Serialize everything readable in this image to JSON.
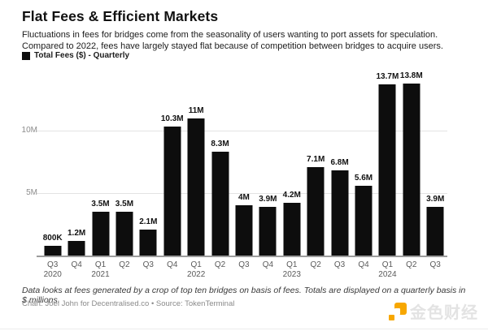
{
  "header": {
    "title": "Flat Fees & Efficient Markets",
    "subtitle": "Fluctuations in fees for bridges come from the seasonality of users wanting to port assets for speculation. Compared to 2022, fees have largely stayed flat because of competition between bridges to acquire users.",
    "legend": {
      "label": "Total Fees ($) - Quarterly",
      "swatch_color": "#0d0d0d"
    }
  },
  "chart_data": {
    "type": "bar",
    "title": "Total Fees ($) - Quarterly",
    "xlabel": "",
    "ylabel": "",
    "unit": "$ millions",
    "ylim": [
      0,
      14.55
    ],
    "grid": true,
    "legend_position": "top-left",
    "bar_color": "#0d0d0d",
    "grid_color": "#e3e3e3",
    "yticks": [
      {
        "label": "5M",
        "value": 5
      },
      {
        "label": "10M",
        "value": 10
      }
    ],
    "categories": [
      "Q3 2020",
      "Q4 2020",
      "Q1 2021",
      "Q2 2021",
      "Q3 2021",
      "Q4 2021",
      "Q1 2022",
      "Q2 2022",
      "Q3 2022",
      "Q4 2022",
      "Q1 2023",
      "Q2 2023",
      "Q3 2023",
      "Q4 2023",
      "Q1 2024",
      "Q2 2024",
      "Q3 2024"
    ],
    "values": [
      0.8,
      1.2,
      3.5,
      3.5,
      2.1,
      10.3,
      11,
      8.3,
      4,
      3.9,
      4.2,
      7.1,
      6.8,
      5.6,
      13.7,
      13.8,
      3.9
    ],
    "bars": [
      {
        "quarter": "Q3",
        "year": "2020",
        "value": 0.8,
        "label": "800K"
      },
      {
        "quarter": "Q4",
        "year": "",
        "value": 1.2,
        "label": "1.2M"
      },
      {
        "quarter": "Q1",
        "year": "2021",
        "value": 3.5,
        "label": "3.5M"
      },
      {
        "quarter": "Q2",
        "year": "",
        "value": 3.5,
        "label": "3.5M"
      },
      {
        "quarter": "Q3",
        "year": "",
        "value": 2.1,
        "label": "2.1M"
      },
      {
        "quarter": "Q4",
        "year": "",
        "value": 10.3,
        "label": "10.3M"
      },
      {
        "quarter": "Q1",
        "year": "2022",
        "value": 11,
        "label": "11M"
      },
      {
        "quarter": "Q2",
        "year": "",
        "value": 8.3,
        "label": "8.3M"
      },
      {
        "quarter": "Q3",
        "year": "",
        "value": 4,
        "label": "4M"
      },
      {
        "quarter": "Q4",
        "year": "",
        "value": 3.9,
        "label": "3.9M"
      },
      {
        "quarter": "Q1",
        "year": "2023",
        "value": 4.2,
        "label": "4.2M"
      },
      {
        "quarter": "Q2",
        "year": "",
        "value": 7.1,
        "label": "7.1M"
      },
      {
        "quarter": "Q3",
        "year": "",
        "value": 6.8,
        "label": "6.8M"
      },
      {
        "quarter": "Q4",
        "year": "",
        "value": 5.6,
        "label": "5.6M"
      },
      {
        "quarter": "Q1",
        "year": "2024",
        "value": 13.7,
        "label": "13.7M"
      },
      {
        "quarter": "Q2",
        "year": "",
        "value": 13.8,
        "label": "13.8M"
      },
      {
        "quarter": "Q3",
        "year": "",
        "value": 3.9,
        "label": "3.9M"
      }
    ]
  },
  "footer": {
    "note": "Data looks at fees generated by a crop of top ten bridges on basis of fees. Totals are displayed on a quarterly basis in $ millions.",
    "credit": "Chart: Joel John for Decentralised.co • Source: TokenTerminal"
  },
  "watermark": {
    "text": "金色财经",
    "accent_color": "#f7a700"
  }
}
